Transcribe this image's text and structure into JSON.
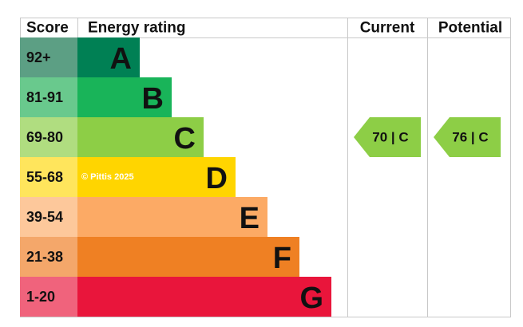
{
  "header": {
    "score": "Score",
    "rating": "Energy rating",
    "current": "Current",
    "potential": "Potential"
  },
  "bands": [
    {
      "score": "92+",
      "letter": "A",
      "color": "#008054",
      "score_color": "#5c9f84"
    },
    {
      "score": "81-91",
      "letter": "B",
      "color": "#19b459",
      "score_color": "#69c98d"
    },
    {
      "score": "69-80",
      "letter": "C",
      "color": "#8dce46",
      "score_color": "#b0dd80"
    },
    {
      "score": "55-68",
      "letter": "D",
      "color": "#ffd500",
      "score_color": "#ffe55c"
    },
    {
      "score": "39-54",
      "letter": "E",
      "color": "#fcaa65",
      "score_color": "#fdc89b"
    },
    {
      "score": "21-38",
      "letter": "F",
      "color": "#ef8023",
      "score_color": "#f4a76a"
    },
    {
      "score": "1-20",
      "letter": "G",
      "color": "#e9153b",
      "score_color": "#f0637c"
    }
  ],
  "watermark": "© Pittis 2025",
  "current": {
    "label": "70 | C"
  },
  "potential": {
    "label": "76 | C"
  }
}
